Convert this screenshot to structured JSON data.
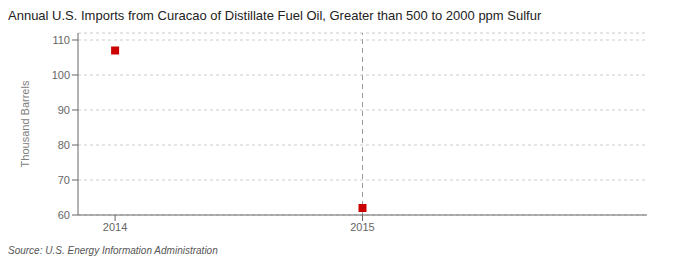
{
  "chart_data": {
    "type": "scatter",
    "title": "Annual U.S. Imports from Curacao of Distillate Fuel Oil, Greater than 500 to 2000 ppm Sulfur",
    "ylabel": "Thousand Barrels",
    "annotations": [
      "Source: U.S. Energy Information Administration"
    ],
    "x": [
      2014,
      2015
    ],
    "values": [
      107,
      62
    ],
    "color": "#cc0000",
    "marker": "square",
    "vlines": [
      2015
    ],
    "xlim": [
      2013.85,
      2016.15
    ],
    "xticks": [
      2014,
      2015
    ],
    "ylim": [
      60,
      112
    ],
    "yticks": [
      60,
      70,
      80,
      90,
      100,
      110
    ],
    "grid": "y"
  }
}
